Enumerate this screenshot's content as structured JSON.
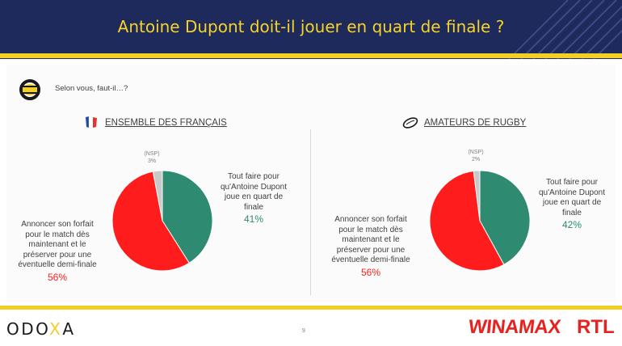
{
  "header": {
    "title": "Antoine Dupont doit-il jouer en quart de finale ?"
  },
  "question": "Selon vous, faut-il…?",
  "colors": {
    "navy": "#1e2a5c",
    "gold": "#f1cf26",
    "green": "#2e8a70",
    "red": "#ff1c1c",
    "grey": "#c9c9c9"
  },
  "icons": {
    "logo": "odoxa-symbol-icon",
    "left": "france-flag-icon",
    "right": "rugby-ball-icon"
  },
  "chart_data": [
    {
      "type": "pie",
      "title": "ENSEMBLE DES FRANÇAIS",
      "slices": [
        {
          "label": "Tout faire pour qu'Antoine Dupont joue en quart de finale",
          "value": 41,
          "display": "41%",
          "color": "#2e8a70"
        },
        {
          "label": "Annoncer son forfait pour le match dès maintenant et le préserver pour une éventuelle demi-finale",
          "value": 56,
          "display": "56%",
          "color": "#ff1c1c"
        },
        {
          "label": "(NSP)",
          "value": 3,
          "display": "3%",
          "color": "#c9c9c9"
        }
      ]
    },
    {
      "type": "pie",
      "title": "AMATEURS DE RUGBY",
      "slices": [
        {
          "label": "Tout faire pour qu'Antoine Dupont joue en quart de finale",
          "value": 42,
          "display": "42%",
          "color": "#2e8a70"
        },
        {
          "label": "Annoncer son forfait pour le match dès maintenant et le préserver pour une éventuelle demi-finale",
          "value": 56,
          "display": "56%",
          "color": "#ff1c1c"
        },
        {
          "label": "(NSP)",
          "value": 2,
          "display": "2%",
          "color": "#c9c9c9"
        }
      ]
    }
  ],
  "footer": {
    "brand_left": "ODO",
    "brand_x": "X",
    "brand_end": "A",
    "page": "9",
    "sponsor1": "WINAMAX",
    "sponsor2": "RTL"
  }
}
